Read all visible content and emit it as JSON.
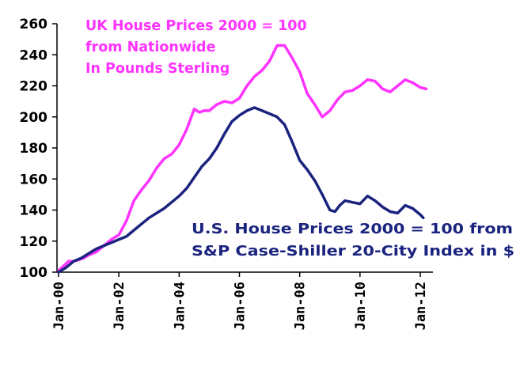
{
  "chart_data": {
    "type": "line",
    "ylim": [
      100,
      260
    ],
    "yticks": [
      "260",
      "240",
      "220",
      "200",
      "180",
      "160",
      "140",
      "120",
      "100"
    ],
    "xticks": [
      "Jan-00",
      "Jan-02",
      "Jan-04",
      "Jan-06",
      "Jan-08",
      "Jan-10",
      "Jan-12"
    ],
    "xlim": [
      2000.0,
      2012.5
    ],
    "grid": false,
    "annotations": {
      "uk": [
        "UK House Prices 2000 = 100",
        "from Nationwide",
        "In Pounds Sterling"
      ],
      "us": [
        "U.S. House Prices 2000 = 100 from",
        "S&P Case-Shiller 20-City Index in $"
      ]
    },
    "series": [
      {
        "id": "uk",
        "color": "#ff33ff",
        "x": [
          2000.0,
          2000.17,
          2000.33,
          2000.5,
          2000.67,
          2000.83,
          2001.0,
          2001.25,
          2001.5,
          2001.75,
          2002.0,
          2002.25,
          2002.5,
          2002.75,
          2003.0,
          2003.25,
          2003.5,
          2003.75,
          2004.0,
          2004.25,
          2004.5,
          2004.67,
          2004.83,
          2005.0,
          2005.25,
          2005.5,
          2005.75,
          2006.0,
          2006.25,
          2006.5,
          2006.75,
          2007.0,
          2007.25,
          2007.5,
          2007.75,
          2008.0,
          2008.25,
          2008.5,
          2008.75,
          2009.0,
          2009.25,
          2009.5,
          2009.75,
          2010.0,
          2010.25,
          2010.5,
          2010.75,
          2011.0,
          2011.25,
          2011.5,
          2011.75,
          2012.0,
          2012.2
        ],
        "values": [
          101,
          104,
          107,
          107,
          108,
          109,
          111,
          113,
          117,
          121,
          124,
          133,
          146,
          153,
          159,
          167,
          173,
          176,
          182,
          192,
          205,
          203,
          204,
          204,
          208,
          210,
          209,
          212,
          220,
          226,
          230,
          236,
          246,
          246,
          238,
          229,
          215,
          208,
          200,
          204,
          211,
          216,
          217,
          220,
          224,
          223,
          218,
          216,
          220,
          224,
          222,
          219,
          218
        ]
      },
      {
        "id": "us",
        "color": "#1a237e",
        "x": [
          2000.0,
          2000.25,
          2000.5,
          2000.75,
          2001.0,
          2001.25,
          2001.5,
          2001.75,
          2002.0,
          2002.25,
          2002.5,
          2002.75,
          2003.0,
          2003.25,
          2003.5,
          2003.75,
          2004.0,
          2004.25,
          2004.5,
          2004.75,
          2005.0,
          2005.25,
          2005.5,
          2005.75,
          2006.0,
          2006.25,
          2006.5,
          2006.75,
          2007.0,
          2007.25,
          2007.5,
          2007.75,
          2008.0,
          2008.25,
          2008.5,
          2008.75,
          2009.0,
          2009.17,
          2009.33,
          2009.5,
          2009.75,
          2010.0,
          2010.25,
          2010.5,
          2010.75,
          2011.0,
          2011.25,
          2011.5,
          2011.75,
          2012.0,
          2012.1
        ],
        "values": [
          100,
          103,
          107,
          109,
          112,
          115,
          117,
          119,
          121,
          123,
          127,
          131,
          135,
          138,
          141,
          145,
          149,
          154,
          161,
          168,
          173,
          180,
          189,
          197,
          201,
          204,
          206,
          204,
          202,
          200,
          195,
          184,
          172,
          166,
          159,
          150,
          140,
          139,
          143,
          146,
          145,
          144,
          149,
          146,
          142,
          139,
          138,
          143,
          141,
          137,
          135
        ]
      }
    ]
  }
}
